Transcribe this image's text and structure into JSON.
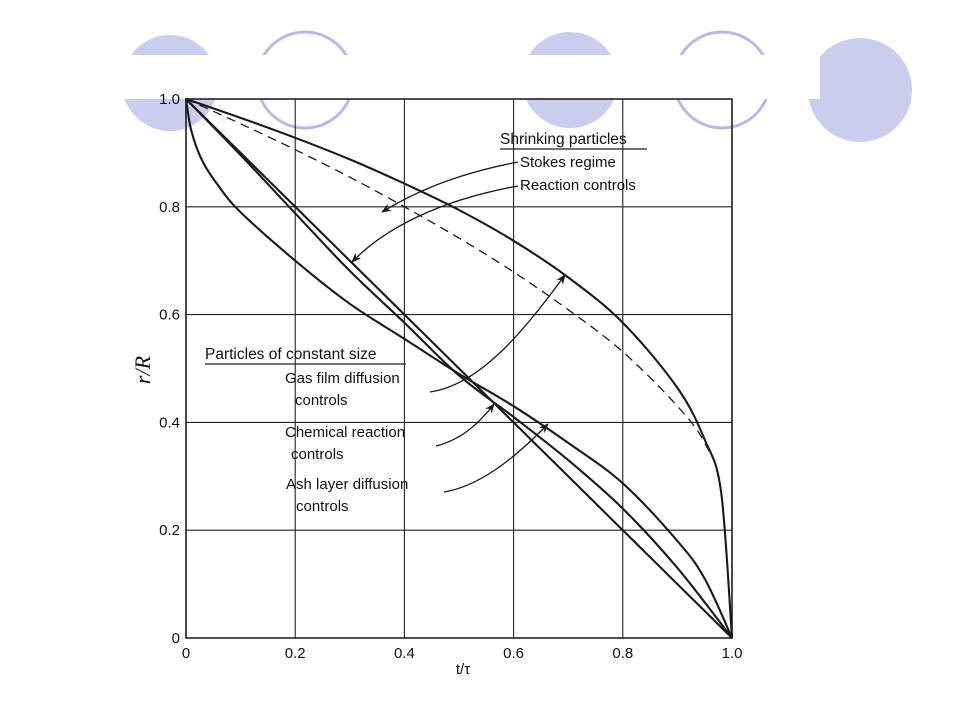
{
  "theme": {
    "disk_fill": "#ccccee",
    "disk_stroke": "#b9b9e4",
    "line_color": "#1a1a1a",
    "grid_color": "#222222"
  },
  "decor": {
    "disks": [
      {
        "name": "disk-1",
        "style": "filled"
      },
      {
        "name": "disk-2",
        "style": "outline"
      },
      {
        "name": "disk-3",
        "style": "filled"
      },
      {
        "name": "disk-4",
        "style": "outline"
      },
      {
        "name": "disk-5",
        "style": "filled"
      }
    ]
  },
  "chart_data": {
    "type": "line",
    "title": "",
    "xlabel": "t/τ",
    "ylabel": "r/R",
    "xlim": [
      0,
      1.0
    ],
    "ylim": [
      0,
      1.0
    ],
    "grid": true,
    "x_ticks": [
      "0",
      "0.2",
      "0.4",
      "0.6",
      "0.8",
      "1.0"
    ],
    "y_ticks": [
      "0",
      "0.2",
      "0.4",
      "0.6",
      "0.8",
      "1.0"
    ],
    "series": [
      {
        "key": "stokes",
        "style": "dashed",
        "points": [
          [
            0,
            1.0
          ],
          [
            0.1,
            0.954
          ],
          [
            0.2,
            0.906
          ],
          [
            0.3,
            0.855
          ],
          [
            0.4,
            0.8
          ],
          [
            0.5,
            0.742
          ],
          [
            0.6,
            0.679
          ],
          [
            0.7,
            0.609
          ],
          [
            0.8,
            0.531
          ],
          [
            0.9,
            0.43
          ],
          [
            0.95,
            0.362
          ],
          [
            0.98,
            0.272
          ],
          [
            1.0,
            0.0
          ]
        ]
      },
      {
        "key": "reaction_shrinking",
        "style": "solid",
        "points": [
          [
            0,
            1.0
          ],
          [
            0.1,
            0.965
          ],
          [
            0.2,
            0.928
          ],
          [
            0.3,
            0.888
          ],
          [
            0.4,
            0.843
          ],
          [
            0.5,
            0.794
          ],
          [
            0.6,
            0.737
          ],
          [
            0.7,
            0.669
          ],
          [
            0.8,
            0.585
          ],
          [
            0.9,
            0.464
          ],
          [
            0.95,
            0.368
          ],
          [
            0.98,
            0.271
          ],
          [
            1.0,
            0.0
          ]
        ]
      },
      {
        "key": "gas_film",
        "style": "solid",
        "points": [
          [
            0,
            1.0
          ],
          [
            0.1,
            0.9
          ],
          [
            0.2,
            0.8
          ],
          [
            0.3,
            0.7
          ],
          [
            0.4,
            0.6
          ],
          [
            0.5,
            0.5
          ],
          [
            0.6,
            0.4
          ],
          [
            0.7,
            0.3
          ],
          [
            0.8,
            0.2
          ],
          [
            0.9,
            0.1
          ],
          [
            1.0,
            0.0
          ]
        ]
      },
      {
        "key": "chemical_reaction",
        "style": "solid",
        "points": [
          [
            0,
            1.0
          ],
          [
            0.1,
            0.896
          ],
          [
            0.2,
            0.788
          ],
          [
            0.3,
            0.681
          ],
          [
            0.4,
            0.585
          ],
          [
            0.5,
            0.487
          ],
          [
            0.6,
            0.41
          ],
          [
            0.7,
            0.33
          ],
          [
            0.8,
            0.24
          ],
          [
            0.9,
            0.13
          ],
          [
            1.0,
            0.0
          ]
        ]
      },
      {
        "key": "ash_layer",
        "style": "solid",
        "points": [
          [
            0,
            1.0
          ],
          [
            0.01,
            0.94
          ],
          [
            0.03,
            0.885
          ],
          [
            0.06,
            0.838
          ],
          [
            0.1,
            0.79
          ],
          [
            0.2,
            0.7
          ],
          [
            0.3,
            0.62
          ],
          [
            0.4,
            0.555
          ],
          [
            0.5,
            0.49
          ],
          [
            0.6,
            0.43
          ],
          [
            0.7,
            0.362
          ],
          [
            0.8,
            0.287
          ],
          [
            0.9,
            0.18
          ],
          [
            0.95,
            0.11
          ],
          [
            1.0,
            0.0
          ]
        ]
      }
    ],
    "annotations": {
      "shrinking_heading": "Shrinking particles",
      "stokes_regime": "Stokes regime",
      "reaction_controls": "Reaction controls",
      "constant_heading": "Particles of constant size",
      "gas_film_1": "Gas film diffusion",
      "gas_film_2": "controls",
      "chemical_1": "Chemical reaction",
      "chemical_2": "controls",
      "ash_1": "Ash layer diffusion",
      "ash_2": "controls"
    }
  }
}
